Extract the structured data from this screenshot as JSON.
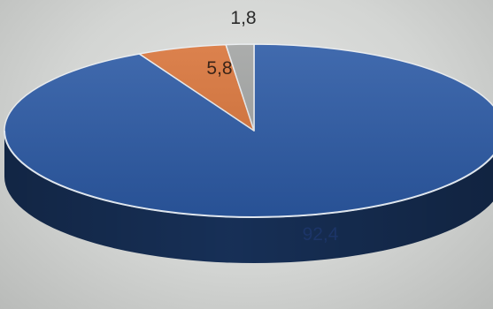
{
  "chart_data": {
    "type": "pie",
    "three_d": true,
    "slices": [
      {
        "value": "92,4",
        "color": "#2c5aa5"
      },
      {
        "value": "5,8",
        "color": "#d8743a"
      },
      {
        "value": "1,8",
        "color": "#a2a4a3"
      }
    ]
  }
}
